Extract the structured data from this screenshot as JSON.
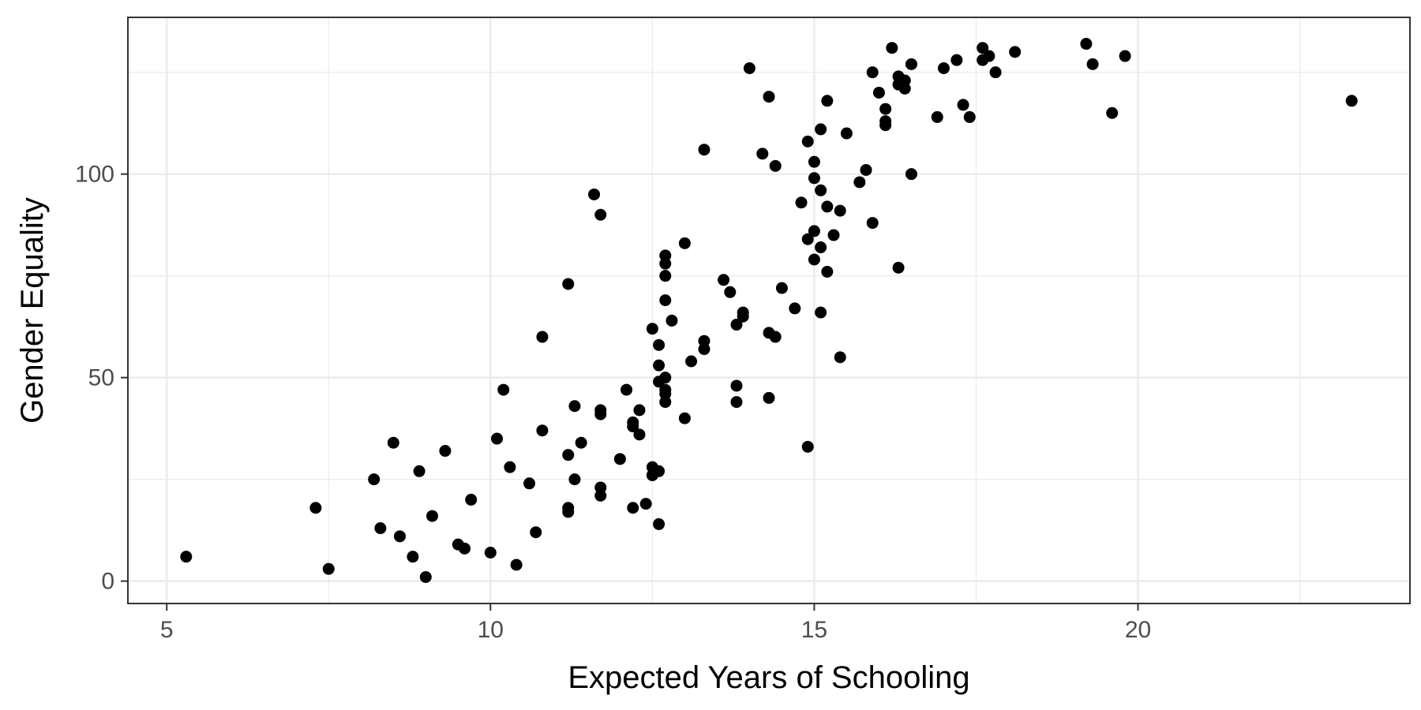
{
  "chart_data": {
    "type": "scatter",
    "xlabel": "Expected Years of Schooling",
    "ylabel": "Gender Equality",
    "xlim": [
      4.4,
      24.2
    ],
    "ylim": [
      -5.5,
      138.5
    ],
    "x_ticks": [
      5,
      10,
      15,
      20
    ],
    "x_tick_labels": [
      "5",
      "10",
      "15",
      "20"
    ],
    "y_ticks": [
      0,
      50,
      100
    ],
    "y_tick_labels": [
      "0",
      "50",
      "100"
    ],
    "x_minor_gridlines": [
      7.5,
      12.5,
      17.5,
      22.5
    ],
    "y_minor_gridlines": [
      25,
      75,
      125
    ],
    "grid": true,
    "point_color": "#000000",
    "grid_color": "#ebebeb",
    "points": [
      [
        5.3,
        6
      ],
      [
        7.3,
        18
      ],
      [
        7.5,
        3
      ],
      [
        8.2,
        25
      ],
      [
        8.3,
        13
      ],
      [
        8.5,
        34
      ],
      [
        8.6,
        11
      ],
      [
        8.8,
        6
      ],
      [
        8.9,
        27
      ],
      [
        9.0,
        1
      ],
      [
        9.1,
        16
      ],
      [
        9.3,
        32
      ],
      [
        9.5,
        9
      ],
      [
        9.6,
        8
      ],
      [
        9.7,
        20
      ],
      [
        10.0,
        7
      ],
      [
        10.1,
        35
      ],
      [
        10.2,
        47
      ],
      [
        10.3,
        28
      ],
      [
        10.4,
        4
      ],
      [
        10.6,
        24
      ],
      [
        10.7,
        12
      ],
      [
        10.8,
        37
      ],
      [
        10.8,
        60
      ],
      [
        11.2,
        17
      ],
      [
        11.2,
        18
      ],
      [
        11.2,
        31
      ],
      [
        11.2,
        73
      ],
      [
        11.3,
        25
      ],
      [
        11.3,
        43
      ],
      [
        11.4,
        34
      ],
      [
        11.6,
        95
      ],
      [
        11.7,
        90
      ],
      [
        11.7,
        21
      ],
      [
        11.7,
        23
      ],
      [
        11.7,
        41
      ],
      [
        11.7,
        42
      ],
      [
        12.0,
        30
      ],
      [
        12.1,
        47
      ],
      [
        12.2,
        18
      ],
      [
        12.2,
        38
      ],
      [
        12.2,
        39
      ],
      [
        12.3,
        36
      ],
      [
        12.3,
        42
      ],
      [
        12.4,
        19
      ],
      [
        12.5,
        62
      ],
      [
        12.5,
        26
      ],
      [
        12.5,
        28
      ],
      [
        12.6,
        58
      ],
      [
        12.6,
        53
      ],
      [
        12.6,
        49
      ],
      [
        12.6,
        27
      ],
      [
        12.6,
        14
      ],
      [
        12.7,
        80
      ],
      [
        12.7,
        78
      ],
      [
        12.7,
        75
      ],
      [
        12.7,
        69
      ],
      [
        12.7,
        50
      ],
      [
        12.7,
        47
      ],
      [
        12.7,
        46
      ],
      [
        12.7,
        44
      ],
      [
        12.8,
        64
      ],
      [
        13.0,
        83
      ],
      [
        13.0,
        40
      ],
      [
        13.1,
        54
      ],
      [
        13.3,
        106
      ],
      [
        13.3,
        59
      ],
      [
        13.3,
        57
      ],
      [
        13.6,
        74
      ],
      [
        13.7,
        71
      ],
      [
        13.8,
        63
      ],
      [
        13.8,
        48
      ],
      [
        13.8,
        44
      ],
      [
        13.9,
        66
      ],
      [
        13.9,
        65
      ],
      [
        14.0,
        126
      ],
      [
        14.2,
        105
      ],
      [
        14.3,
        119
      ],
      [
        14.3,
        61
      ],
      [
        14.3,
        45
      ],
      [
        14.4,
        102
      ],
      [
        14.4,
        60
      ],
      [
        14.5,
        72
      ],
      [
        14.7,
        67
      ],
      [
        14.8,
        93
      ],
      [
        14.9,
        108
      ],
      [
        14.9,
        84
      ],
      [
        14.9,
        33
      ],
      [
        15.0,
        103
      ],
      [
        15.0,
        99
      ],
      [
        15.0,
        86
      ],
      [
        15.0,
        79
      ],
      [
        15.1,
        111
      ],
      [
        15.1,
        96
      ],
      [
        15.1,
        82
      ],
      [
        15.1,
        66
      ],
      [
        15.2,
        118
      ],
      [
        15.2,
        92
      ],
      [
        15.2,
        76
      ],
      [
        15.3,
        85
      ],
      [
        15.4,
        91
      ],
      [
        15.4,
        55
      ],
      [
        15.5,
        110
      ],
      [
        15.7,
        98
      ],
      [
        15.8,
        101
      ],
      [
        15.9,
        125
      ],
      [
        15.9,
        88
      ],
      [
        16.0,
        120
      ],
      [
        16.1,
        116
      ],
      [
        16.1,
        113
      ],
      [
        16.1,
        112
      ],
      [
        16.2,
        131
      ],
      [
        16.3,
        124
      ],
      [
        16.3,
        122
      ],
      [
        16.3,
        77
      ],
      [
        16.4,
        123
      ],
      [
        16.4,
        121
      ],
      [
        16.5,
        127
      ],
      [
        16.5,
        100
      ],
      [
        16.9,
        114
      ],
      [
        17.0,
        126
      ],
      [
        17.2,
        128
      ],
      [
        17.3,
        117
      ],
      [
        17.4,
        114
      ],
      [
        17.6,
        131
      ],
      [
        17.6,
        128
      ],
      [
        17.7,
        129
      ],
      [
        17.8,
        125
      ],
      [
        18.1,
        130
      ],
      [
        19.2,
        132
      ],
      [
        19.3,
        127
      ],
      [
        19.6,
        115
      ],
      [
        19.8,
        129
      ],
      [
        23.3,
        118
      ]
    ]
  }
}
